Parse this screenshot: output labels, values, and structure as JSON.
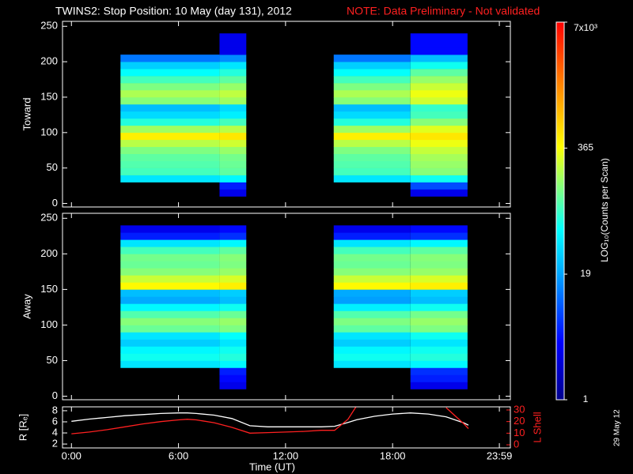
{
  "title": "TWINS2: Stop Position: 10 May (day 131), 2012",
  "note": "NOTE: Data Preliminary - Not validated",
  "date_stamp": "29 May 12",
  "colorbar": {
    "label": "LOG₁₀(Counts per Scan)",
    "zlim": [
      1,
      7000
    ],
    "log": true,
    "zticks": [
      1,
      19,
      365,
      {
        "value": 7000,
        "label": "7x10³"
      }
    ],
    "colormap": [
      [
        0,
        "#00008c"
      ],
      [
        0.15,
        "#0000ff"
      ],
      [
        0.35,
        "#00b4ff"
      ],
      [
        0.45,
        "#00ffff"
      ],
      [
        0.56,
        "#80ff80"
      ],
      [
        0.67,
        "#ffff00"
      ],
      [
        0.84,
        "#ff8000"
      ],
      [
        1,
        "#ff0000"
      ]
    ]
  },
  "chart_data": [
    {
      "type": "heatmap",
      "ylabel": "Toward",
      "xlim": [
        -0.5,
        24.6
      ],
      "ylim": [
        -5,
        257
      ],
      "yticks": [
        0,
        50,
        100,
        150,
        200,
        250
      ],
      "x_edges": [
        2.75,
        8.3,
        9.8,
        14.7,
        19.0,
        22.2
      ],
      "y_edges": [
        0,
        10,
        20,
        30,
        40,
        50,
        60,
        70,
        80,
        90,
        100,
        110,
        120,
        130,
        140,
        150,
        160,
        170,
        180,
        190,
        200,
        210,
        220,
        230,
        240,
        250
      ],
      "z": [
        [
          null,
          null,
          null,
          null,
          null
        ],
        [
          null,
          3,
          null,
          null,
          3
        ],
        [
          null,
          5,
          null,
          null,
          8
        ],
        [
          40,
          50,
          null,
          40,
          60
        ],
        [
          90,
          110,
          null,
          90,
          150
        ],
        [
          100,
          120,
          null,
          100,
          170
        ],
        [
          110,
          130,
          null,
          110,
          190
        ],
        [
          140,
          170,
          null,
          140,
          240
        ],
        [
          220,
          260,
          null,
          220,
          330
        ],
        [
          450,
          500,
          null,
          450,
          500
        ],
        [
          180,
          220,
          null,
          180,
          300
        ],
        [
          70,
          90,
          null,
          70,
          150
        ],
        [
          35,
          45,
          null,
          35,
          90
        ],
        [
          25,
          35,
          null,
          25,
          80
        ],
        [
          150,
          180,
          null,
          150,
          260
        ],
        [
          200,
          230,
          null,
          200,
          330
        ],
        [
          140,
          170,
          null,
          140,
          250
        ],
        [
          90,
          110,
          null,
          90,
          170
        ],
        [
          55,
          70,
          null,
          55,
          110
        ],
        [
          30,
          40,
          null,
          30,
          60
        ],
        [
          12,
          15,
          null,
          12,
          25
        ],
        [
          null,
          3,
          null,
          null,
          4
        ],
        [
          null,
          3,
          null,
          null,
          4
        ],
        [
          null,
          3,
          null,
          null,
          4
        ],
        [
          null,
          null,
          null,
          null,
          null
        ]
      ]
    },
    {
      "type": "heatmap",
      "ylabel": "Away",
      "xlim": [
        -0.5,
        24.6
      ],
      "ylim": [
        -5,
        257
      ],
      "yticks": [
        0,
        50,
        100,
        150,
        200,
        250
      ],
      "x_edges": [
        2.75,
        8.3,
        9.8,
        14.7,
        19.0,
        22.2
      ],
      "y_edges": [
        0,
        10,
        20,
        30,
        40,
        50,
        60,
        70,
        80,
        90,
        100,
        110,
        120,
        130,
        140,
        150,
        160,
        170,
        180,
        190,
        200,
        210,
        220,
        230,
        240,
        250
      ],
      "z": [
        [
          null,
          null,
          null,
          null,
          null
        ],
        [
          null,
          3,
          null,
          null,
          3
        ],
        [
          null,
          4,
          null,
          null,
          5
        ],
        [
          null,
          5,
          null,
          null,
          6
        ],
        [
          40,
          50,
          null,
          40,
          50
        ],
        [
          60,
          70,
          null,
          60,
          70
        ],
        [
          50,
          60,
          null,
          50,
          60
        ],
        [
          30,
          40,
          null,
          30,
          40
        ],
        [
          40,
          55,
          null,
          40,
          60
        ],
        [
          120,
          140,
          null,
          110,
          140
        ],
        [
          150,
          170,
          null,
          140,
          170
        ],
        [
          100,
          120,
          null,
          100,
          130
        ],
        [
          50,
          60,
          null,
          45,
          60
        ],
        [
          20,
          25,
          null,
          18,
          25
        ],
        [
          25,
          30,
          null,
          20,
          30
        ],
        [
          400,
          450,
          null,
          400,
          450
        ],
        [
          250,
          280,
          null,
          250,
          280
        ],
        [
          150,
          170,
          null,
          150,
          170
        ],
        [
          120,
          140,
          null,
          120,
          140
        ],
        [
          130,
          150,
          null,
          130,
          150
        ],
        [
          90,
          110,
          null,
          90,
          110
        ],
        [
          40,
          50,
          null,
          40,
          50
        ],
        [
          5,
          6,
          null,
          5,
          6
        ],
        [
          3,
          4,
          null,
          3,
          4
        ],
        [
          null,
          null,
          null,
          null,
          null
        ]
      ]
    },
    {
      "type": "line",
      "xlabel": "Time (UT)",
      "ylabel": "R [Rₑ]",
      "y2label": "L Shell",
      "xlim": [
        -0.5,
        24.6
      ],
      "ylim": [
        1.3,
        8.7
      ],
      "y2lim": [
        -2.7,
        32.7
      ],
      "xticks": [
        {
          "value": 0,
          "label": "0:00"
        },
        {
          "value": 6,
          "label": "6:00"
        },
        {
          "value": 12,
          "label": "12:00"
        },
        {
          "value": 18,
          "label": "18:00"
        },
        {
          "value": 23.983,
          "label": "23:59"
        }
      ],
      "yticks": [
        2,
        4,
        6,
        8
      ],
      "y2ticks": [
        0,
        10,
        20,
        30
      ],
      "x": [
        0,
        1,
        2,
        3,
        4,
        5,
        6,
        6.5,
        7,
        8,
        9,
        10,
        11,
        12,
        13,
        14,
        14.75,
        15.5,
        16,
        17,
        18,
        19,
        20,
        21,
        22,
        22.25
      ],
      "series": [
        {
          "name": "R",
          "color": "#ffffff",
          "values": [
            6.1,
            6.5,
            6.8,
            7.1,
            7.3,
            7.5,
            7.6,
            7.6,
            7.5,
            7.2,
            6.6,
            5.3,
            5.1,
            5.1,
            5.1,
            5.1,
            5.2,
            5.9,
            6.4,
            7.0,
            7.4,
            7.6,
            7.4,
            6.9,
            5.8,
            5.4
          ]
        },
        {
          "name": "L Shell",
          "color": "#ff2020",
          "axis": "y2",
          "values": [
            9.5,
            11,
            13,
            15.5,
            18,
            20,
            21.5,
            22,
            21.5,
            19,
            15,
            10,
            10.5,
            11,
            11.5,
            12.5,
            12.5,
            22,
            34,
            null,
            null,
            null,
            null,
            32,
            18,
            14
          ]
        }
      ]
    }
  ]
}
